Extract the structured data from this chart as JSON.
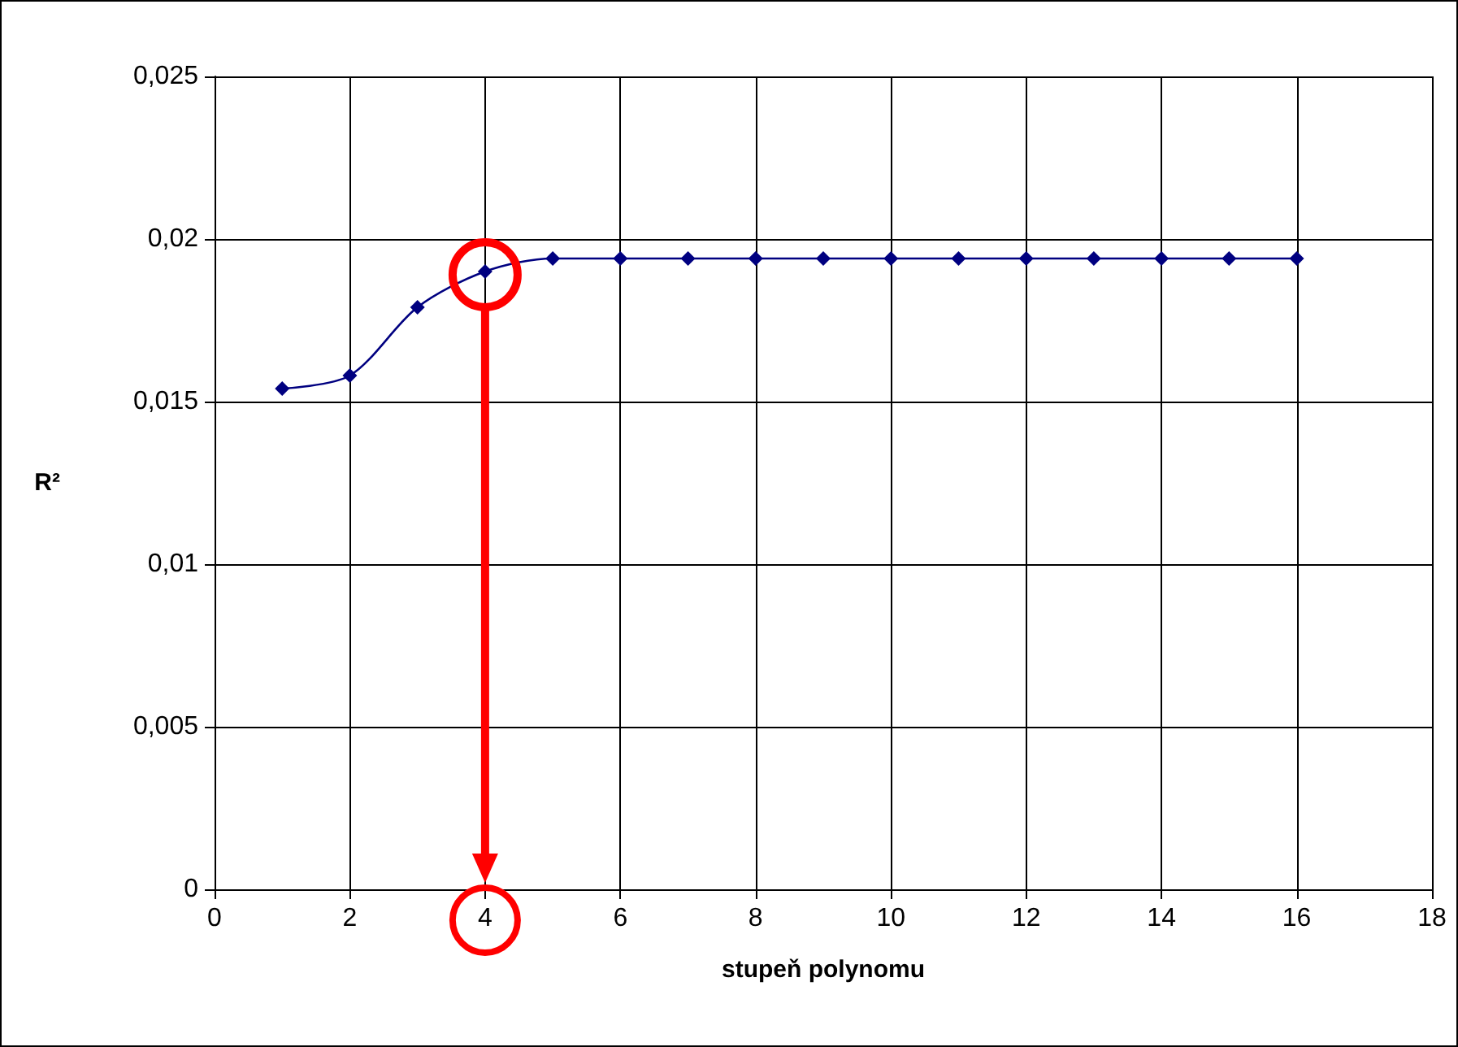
{
  "chart_data": {
    "type": "line",
    "xlabel": "stupeň polynomu",
    "ylabel": "R²",
    "x": [
      1,
      2,
      3,
      4,
      5,
      6,
      7,
      8,
      9,
      10,
      11,
      12,
      13,
      14,
      15,
      16
    ],
    "series": [
      {
        "color": "#000080",
        "values": [
          0.0154,
          0.0158,
          0.0179,
          0.019,
          0.0194,
          0.0194,
          0.0194,
          0.0194,
          0.0194,
          0.0194,
          0.0194,
          0.0194,
          0.0194,
          0.0194,
          0.0194,
          0.0194
        ]
      }
    ],
    "xlim": [
      0,
      18
    ],
    "xticks": [
      0,
      2,
      4,
      6,
      8,
      10,
      12,
      14,
      16,
      18
    ],
    "ylim": [
      0,
      0.025
    ],
    "yticks": [
      {
        "value": 0,
        "label": "0"
      },
      {
        "value": 0.005,
        "label": "0,005"
      },
      {
        "value": 0.01,
        "label": "0,01"
      },
      {
        "value": 0.015,
        "label": "0,015"
      },
      {
        "value": 0.02,
        "label": "0,02"
      },
      {
        "value": 0.025,
        "label": "0,025"
      }
    ],
    "grid": true,
    "marker": "diamond",
    "line_style": "solid"
  }
}
